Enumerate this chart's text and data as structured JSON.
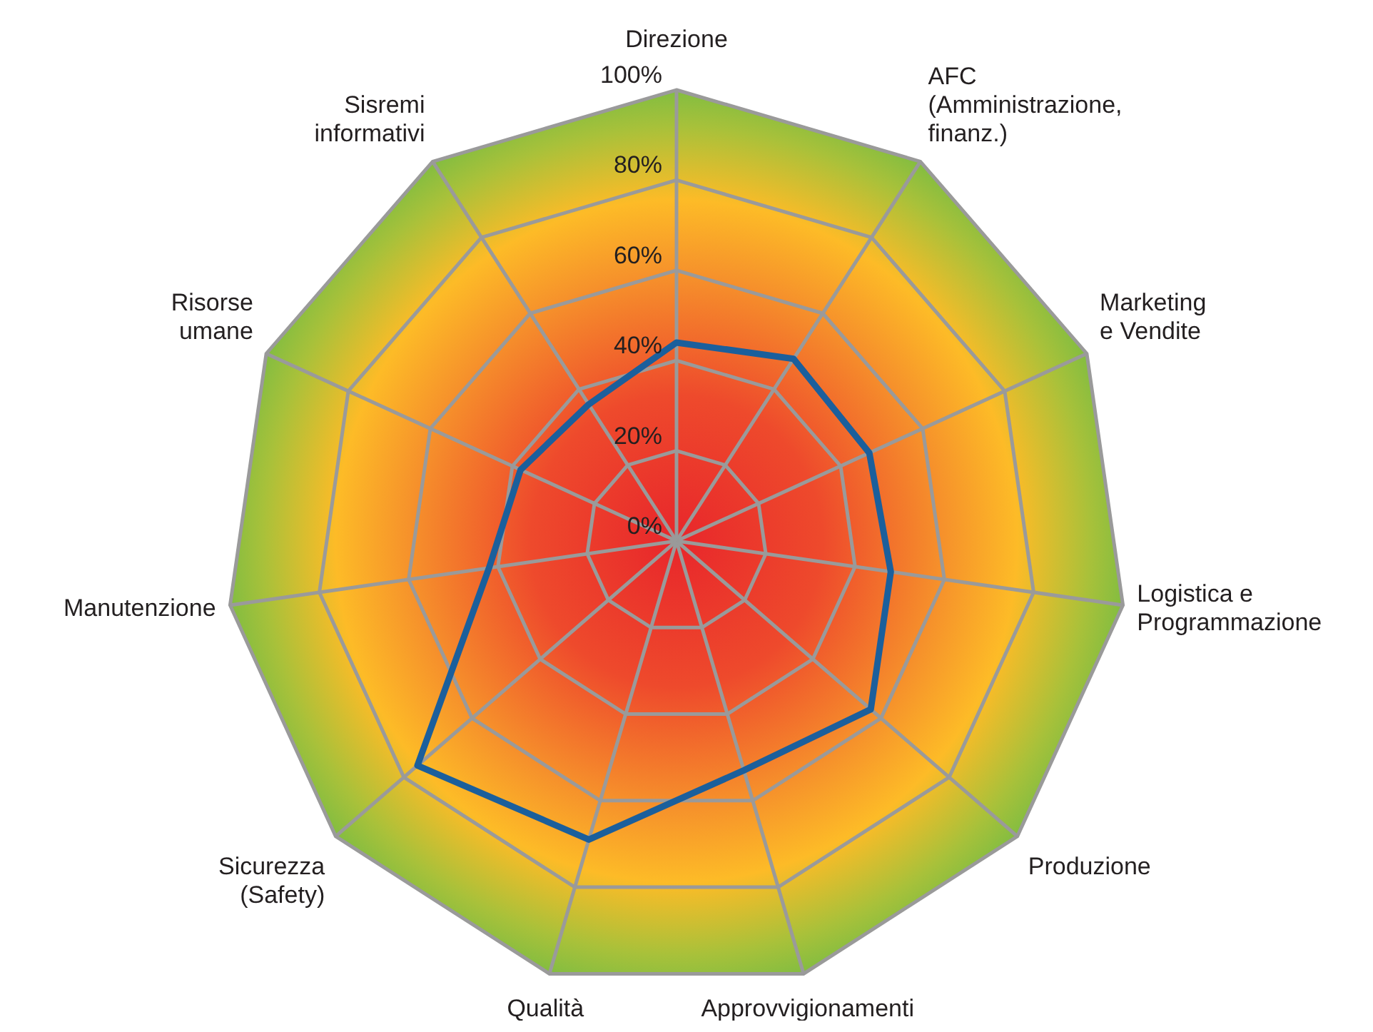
{
  "chart_data": {
    "type": "radar",
    "categories": [
      "Direzione",
      "AFC\n(Amministrazione,\nfinanz.)",
      "Marketing\ne Vendite",
      "Logistica e\nProgrammazione",
      "Produzione",
      "Approvvigionamenti",
      "Qualità",
      "Sicurezza\n(Safety)",
      "Manutenzione",
      "Risorse\numane",
      "Sisremi\ninformativi"
    ],
    "series": [
      {
        "color": "#1b5f9c",
        "values": [
          44,
          48,
          47,
          48,
          57,
          53,
          69,
          76,
          42,
          38,
          36
        ]
      }
    ],
    "ylim": [
      0,
      100
    ],
    "yticks": [
      {
        "value": 0,
        "label": "0%"
      },
      {
        "value": 20,
        "label": "20%"
      },
      {
        "value": 40,
        "label": "40%"
      },
      {
        "value": 60,
        "label": "60%"
      },
      {
        "value": 80,
        "label": "80%"
      },
      {
        "value": 100,
        "label": "100%"
      }
    ],
    "grid": true
  }
}
